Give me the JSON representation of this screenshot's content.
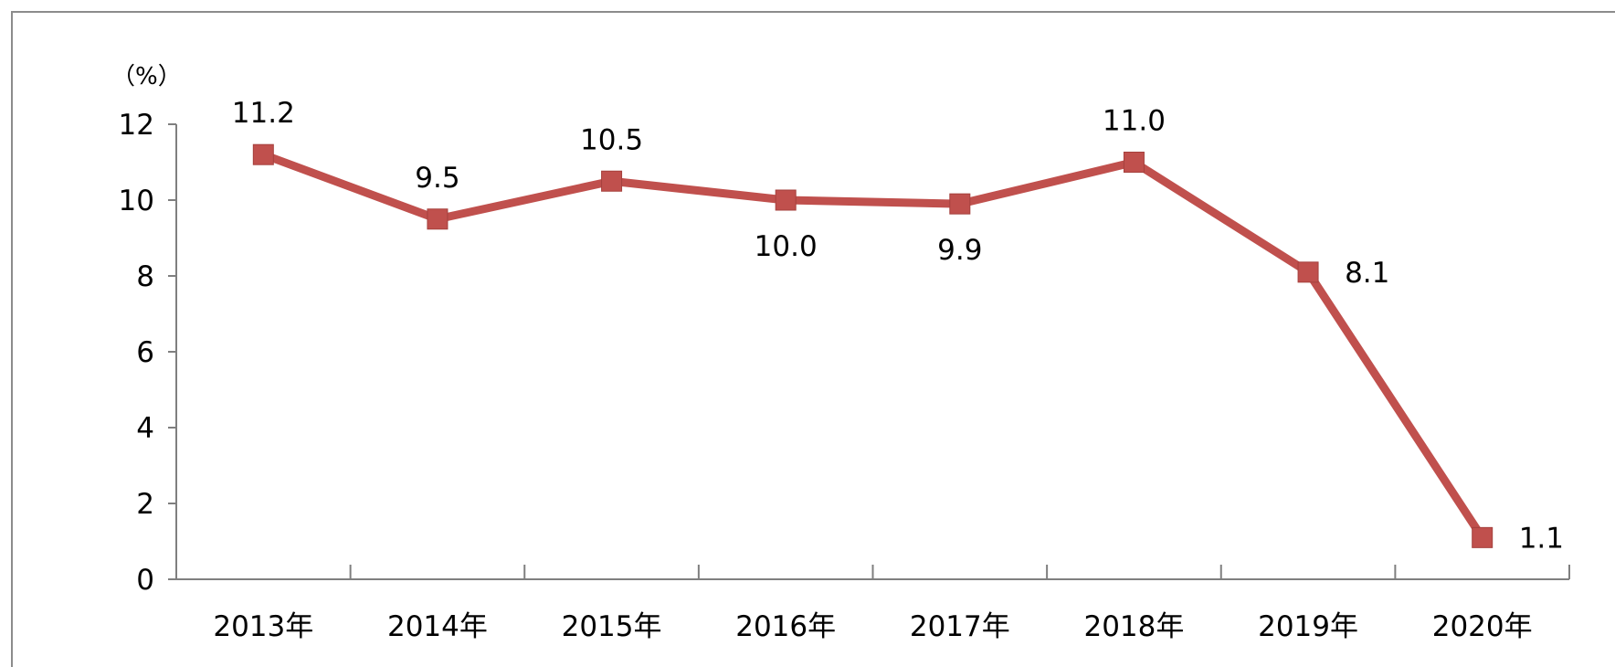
{
  "chart_data": {
    "type": "line",
    "title": "",
    "xlabel": "",
    "ylabel": "（%）",
    "categories": [
      "2013年",
      "2014年",
      "2015年",
      "2016年",
      "2017年",
      "2018年",
      "2019年",
      "2020年"
    ],
    "series": [
      {
        "values": [
          11.2,
          9.5,
          10.5,
          10.0,
          9.9,
          11.0,
          8.1,
          1.1
        ],
        "labels": [
          "11.2",
          "9.5",
          "10.5",
          "10.0",
          "9.9",
          "11.0",
          "8.1",
          "1.1"
        ],
        "label_positions": [
          "above",
          "above",
          "above",
          "below",
          "below",
          "above",
          "right",
          "right"
        ]
      }
    ],
    "ylim": [
      0,
      12
    ],
    "yticks": [
      0,
      2,
      4,
      6,
      8,
      10,
      12
    ],
    "ytick_labels": [
      "0",
      "2",
      "4",
      "6",
      "8",
      "10",
      "12"
    ],
    "grid": false,
    "legend": "none",
    "colors": {
      "line": "#C0504D",
      "axis": "#7F7F7F",
      "frame": "#8C8C8C"
    }
  }
}
